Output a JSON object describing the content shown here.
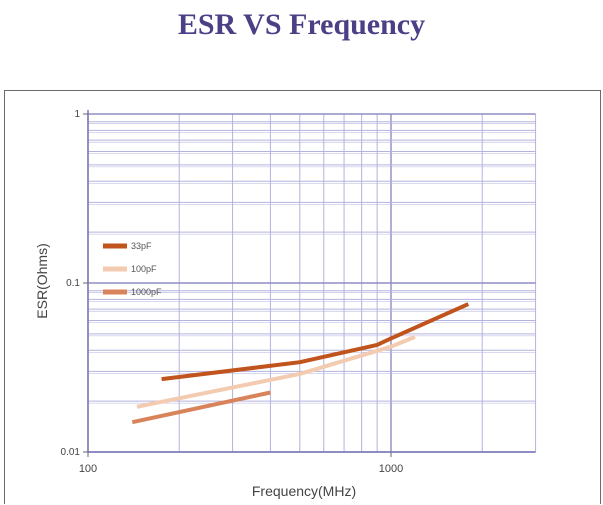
{
  "title": "ESR VS Frequency",
  "colors": {
    "title": "#4b3f86",
    "grid": "#b3b3df",
    "axis": "#7a7ab8"
  },
  "chart_data": {
    "type": "line",
    "title": "ESR VS Frequency",
    "xlabel": "Frequency(MHz)",
    "ylabel": "ESR(Ohms)",
    "x_scale": "log",
    "y_scale": "log",
    "xlim": [
      100,
      3000
    ],
    "ylim": [
      0.01,
      1
    ],
    "x_ticks": [
      {
        "value": 100,
        "label": "100"
      },
      {
        "value": 1000,
        "label": "1000"
      }
    ],
    "y_ticks": [
      {
        "value": 0.01,
        "label": "0.01"
      },
      {
        "value": 0.1,
        "label": "0.1"
      },
      {
        "value": 1,
        "label": "1"
      }
    ],
    "grid": true,
    "legend_position": "left",
    "series": [
      {
        "name": "33pF",
        "color": "#c0541c",
        "x": [
          175,
          500,
          900,
          1000,
          1800
        ],
        "y": [
          0.027,
          0.034,
          0.043,
          0.047,
          0.075
        ]
      },
      {
        "name": "100pF",
        "color": "#f2cbb0",
        "x": [
          145,
          500,
          1000,
          1200
        ],
        "y": [
          0.0185,
          0.029,
          0.042,
          0.048
        ]
      },
      {
        "name": "1000pF",
        "color": "#d9835b",
        "x": [
          140,
          400
        ],
        "y": [
          0.015,
          0.0225
        ]
      }
    ]
  }
}
